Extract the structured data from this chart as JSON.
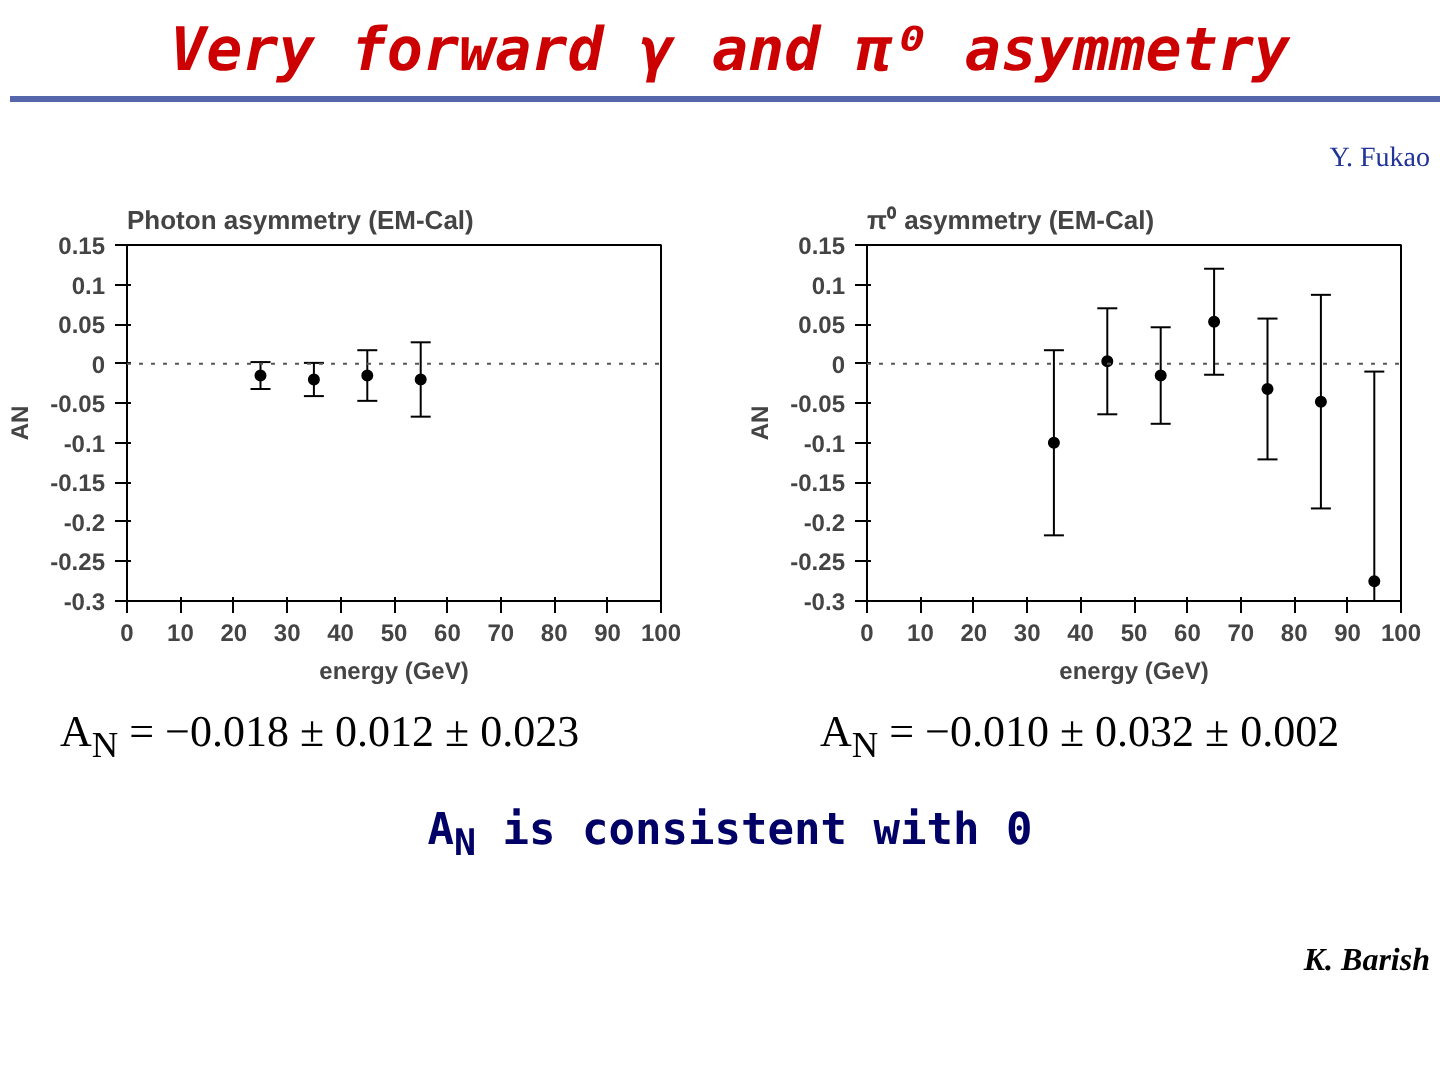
{
  "chart_data": [
    {
      "type": "scatter",
      "title": "Photon asymmetry (EM-Cal)",
      "xlabel": "energy (GeV)",
      "ylabel": "AN",
      "annotations": [
        "Very forward γ and π⁰ asymmetry",
        "A$_{N}$ = −0.018 ± 0.012 ± 0.023",
        "A$_{N}$ is consistent with 0",
        "K. Barish"
      ],
      "x": [
        25,
        35,
        45,
        55
      ],
      "values": [
        -0.015,
        -0.02,
        -0.015,
        -0.02
      ],
      "errors": [
        0.017,
        0.021,
        0.032,
        0.047
      ],
      "color": "#000000",
      "marker": "circle",
      "grid": false,
      "xlim": [
        0,
        100
      ],
      "xticks": [
        0,
        10,
        20,
        30,
        40,
        50,
        60,
        70,
        80,
        90,
        100
      ],
      "ylim": [
        -0.3,
        0.15
      ],
      "yticks": [
        -0.3,
        -0.25,
        -0.2,
        -0.15,
        -0.1,
        -0.05,
        0,
        0.05,
        0.1,
        0.15
      ],
      "ref_lines": [
        {
          "axis": "y",
          "value": 0,
          "line_style": "dotted"
        }
      ]
    },
    {
      "type": "scatter",
      "title": "π⁰ asymmetry (EM-Cal)",
      "xlabel": "energy (GeV)",
      "ylabel": "AN",
      "annotations": [
        "Y. Fukao",
        "A$_{N}$ = −0.010 ± 0.032 ± 0.002"
      ],
      "x": [
        35,
        45,
        55,
        65,
        75,
        85,
        95
      ],
      "values": [
        -0.1,
        0.003,
        -0.015,
        0.053,
        -0.032,
        -0.048,
        -0.275
      ],
      "errors": [
        0.117,
        0.067,
        0.061,
        0.067,
        0.089,
        0.135,
        [
          -0.3,
          -0.01
        ]
      ],
      "color": "#000000",
      "marker": "circle",
      "grid": false,
      "xlim": [
        0,
        100
      ],
      "xticks": [
        0,
        10,
        20,
        30,
        40,
        50,
        60,
        70,
        80,
        90,
        100
      ],
      "ylim": [
        -0.3,
        0.15
      ],
      "yticks": [
        -0.3,
        -0.25,
        -0.2,
        -0.15,
        -0.1,
        -0.05,
        0,
        0.05,
        0.1,
        0.15
      ],
      "ref_lines": [
        {
          "axis": "y",
          "value": 0,
          "line_style": "dotted"
        }
      ]
    }
  ]
}
